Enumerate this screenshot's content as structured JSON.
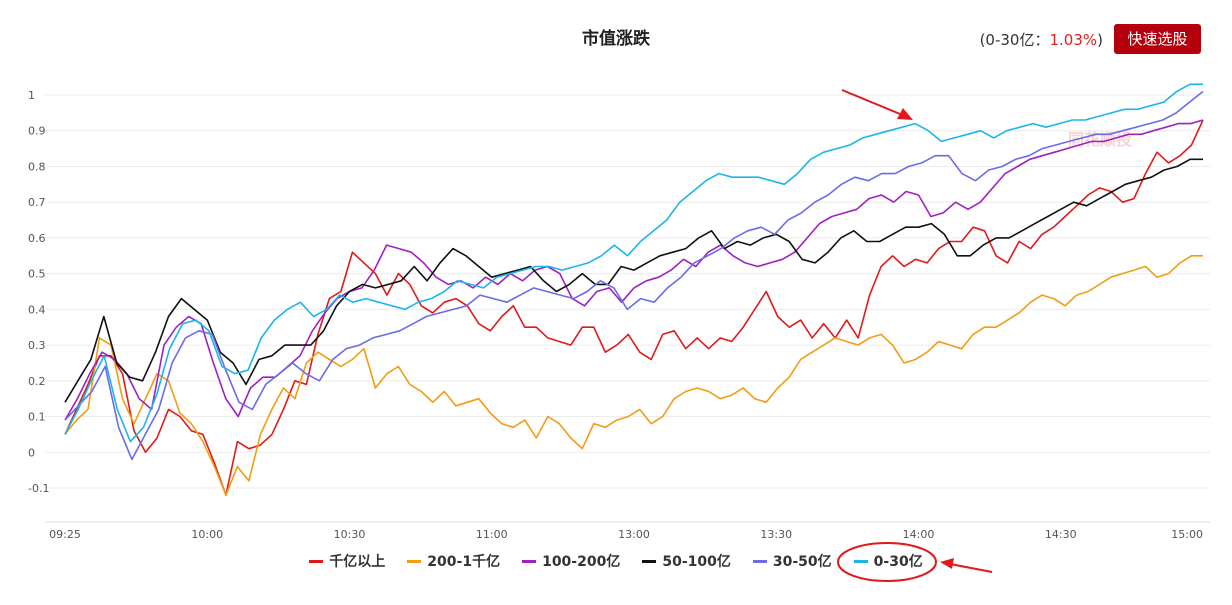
{
  "header": {
    "title": "市值涨跌",
    "stat_prefix": "(0-30亿：",
    "stat_value": "1.03%",
    "stat_suffix": ")",
    "button_label": "快速选股"
  },
  "watermark": "同花顺投",
  "chart_data": {
    "type": "line",
    "title": "市值涨跌",
    "ylim": [
      -0.1,
      1.0
    ],
    "yticks": [
      "-0.1",
      "0",
      "0.1",
      "0.2",
      "0.3",
      "0.4",
      "0.5",
      "0.6",
      "0.7",
      "0.8",
      "0.9",
      "1"
    ],
    "xticks": [
      "09:25",
      "10:00",
      "10:30",
      "11:00",
      "13:00",
      "13:30",
      "14:00",
      "14:30",
      "15:00"
    ],
    "grid": true,
    "legend_position": "bottom-center",
    "series": [
      {
        "name": "千亿以上",
        "color": "#e01a1a",
        "values": [
          0.05,
          0.12,
          0.19,
          0.27,
          0.27,
          0.22,
          0.06,
          0.0,
          0.04,
          0.12,
          0.1,
          0.06,
          0.05,
          -0.03,
          -0.12,
          0.03,
          0.01,
          0.02,
          0.05,
          0.12,
          0.2,
          0.19,
          0.33,
          0.43,
          0.45,
          0.56,
          0.53,
          0.5,
          0.44,
          0.5,
          0.47,
          0.41,
          0.39,
          0.42,
          0.43,
          0.41,
          0.36,
          0.34,
          0.38,
          0.41,
          0.35,
          0.35,
          0.32,
          0.31,
          0.3,
          0.35,
          0.35,
          0.28,
          0.3,
          0.33,
          0.28,
          0.26,
          0.33,
          0.34,
          0.29,
          0.32,
          0.29,
          0.32,
          0.31,
          0.35,
          0.4,
          0.45,
          0.38,
          0.35,
          0.37,
          0.32,
          0.36,
          0.32,
          0.37,
          0.32,
          0.44,
          0.52,
          0.55,
          0.52,
          0.54,
          0.53,
          0.57,
          0.59,
          0.59,
          0.63,
          0.62,
          0.55,
          0.53,
          0.59,
          0.57,
          0.61,
          0.63,
          0.66,
          0.69,
          0.72,
          0.74,
          0.73,
          0.7,
          0.71,
          0.78,
          0.84,
          0.81,
          0.83,
          0.86,
          0.93
        ]
      },
      {
        "name": "200-1千亿",
        "color": "#f39c12",
        "values": [
          0.05,
          0.09,
          0.12,
          0.32,
          0.3,
          0.15,
          0.08,
          0.15,
          0.22,
          0.2,
          0.11,
          0.08,
          0.03,
          -0.04,
          -0.12,
          -0.04,
          -0.08,
          0.05,
          0.12,
          0.18,
          0.15,
          0.25,
          0.28,
          0.26,
          0.24,
          0.26,
          0.29,
          0.18,
          0.22,
          0.24,
          0.19,
          0.17,
          0.14,
          0.17,
          0.13,
          0.14,
          0.15,
          0.11,
          0.08,
          0.07,
          0.09,
          0.04,
          0.1,
          0.08,
          0.04,
          0.01,
          0.08,
          0.07,
          0.09,
          0.1,
          0.12,
          0.08,
          0.1,
          0.15,
          0.17,
          0.18,
          0.17,
          0.15,
          0.16,
          0.18,
          0.15,
          0.14,
          0.18,
          0.21,
          0.26,
          0.28,
          0.3,
          0.32,
          0.31,
          0.3,
          0.32,
          0.33,
          0.3,
          0.25,
          0.26,
          0.28,
          0.31,
          0.3,
          0.29,
          0.33,
          0.35,
          0.35,
          0.37,
          0.39,
          0.42,
          0.44,
          0.43,
          0.41,
          0.44,
          0.45,
          0.47,
          0.49,
          0.5,
          0.51,
          0.52,
          0.49,
          0.5,
          0.53,
          0.55,
          0.55
        ]
      },
      {
        "name": "100-200亿",
        "color": "#a020c0",
        "values": [
          0.09,
          0.15,
          0.22,
          0.28,
          0.26,
          0.22,
          0.15,
          0.12,
          0.3,
          0.35,
          0.38,
          0.36,
          0.25,
          0.15,
          0.1,
          0.18,
          0.21,
          0.21,
          0.24,
          0.27,
          0.34,
          0.39,
          0.43,
          0.45,
          0.46,
          0.51,
          0.58,
          0.57,
          0.56,
          0.53,
          0.49,
          0.47,
          0.48,
          0.46,
          0.49,
          0.47,
          0.5,
          0.48,
          0.51,
          0.52,
          0.5,
          0.43,
          0.41,
          0.45,
          0.46,
          0.42,
          0.46,
          0.48,
          0.49,
          0.51,
          0.54,
          0.52,
          0.56,
          0.58,
          0.55,
          0.53,
          0.52,
          0.53,
          0.54,
          0.56,
          0.6,
          0.64,
          0.66,
          0.67,
          0.68,
          0.71,
          0.72,
          0.7,
          0.73,
          0.72,
          0.66,
          0.67,
          0.7,
          0.68,
          0.7,
          0.74,
          0.78,
          0.8,
          0.82,
          0.83,
          0.84,
          0.85,
          0.86,
          0.87,
          0.87,
          0.88,
          0.89,
          0.89,
          0.9,
          0.91,
          0.92,
          0.92,
          0.93
        ]
      },
      {
        "name": "50-100亿",
        "color": "#111111",
        "values": [
          0.14,
          0.2,
          0.26,
          0.38,
          0.25,
          0.21,
          0.2,
          0.28,
          0.38,
          0.43,
          0.4,
          0.37,
          0.28,
          0.25,
          0.19,
          0.26,
          0.27,
          0.3,
          0.3,
          0.3,
          0.34,
          0.41,
          0.45,
          0.47,
          0.46,
          0.47,
          0.48,
          0.52,
          0.48,
          0.53,
          0.57,
          0.55,
          0.52,
          0.49,
          0.5,
          0.51,
          0.52,
          0.48,
          0.45,
          0.47,
          0.5,
          0.47,
          0.47,
          0.52,
          0.51,
          0.53,
          0.55,
          0.56,
          0.57,
          0.6,
          0.62,
          0.57,
          0.59,
          0.58,
          0.6,
          0.61,
          0.59,
          0.54,
          0.53,
          0.56,
          0.6,
          0.62,
          0.59,
          0.59,
          0.61,
          0.63,
          0.63,
          0.64,
          0.61,
          0.55,
          0.55,
          0.58,
          0.6,
          0.6,
          0.62,
          0.64,
          0.66,
          0.68,
          0.7,
          0.69,
          0.71,
          0.73,
          0.75,
          0.76,
          0.77,
          0.79,
          0.8,
          0.82,
          0.82
        ]
      },
      {
        "name": "30-50亿",
        "color": "#6b6be8",
        "values": [
          0.09,
          0.13,
          0.17,
          0.24,
          0.07,
          -0.02,
          0.05,
          0.12,
          0.25,
          0.32,
          0.34,
          0.33,
          0.23,
          0.14,
          0.12,
          0.19,
          0.22,
          0.25,
          0.22,
          0.2,
          0.26,
          0.29,
          0.3,
          0.32,
          0.33,
          0.34,
          0.36,
          0.38,
          0.39,
          0.4,
          0.41,
          0.44,
          0.43,
          0.42,
          0.44,
          0.46,
          0.45,
          0.44,
          0.43,
          0.45,
          0.48,
          0.46,
          0.4,
          0.43,
          0.42,
          0.46,
          0.49,
          0.53,
          0.55,
          0.57,
          0.6,
          0.62,
          0.63,
          0.61,
          0.65,
          0.67,
          0.7,
          0.72,
          0.75,
          0.77,
          0.76,
          0.78,
          0.78,
          0.8,
          0.81,
          0.83,
          0.83,
          0.78,
          0.76,
          0.79,
          0.8,
          0.82,
          0.83,
          0.85,
          0.86,
          0.87,
          0.88,
          0.89,
          0.89,
          0.9,
          0.91,
          0.92,
          0.93,
          0.95,
          0.98,
          1.01
        ]
      },
      {
        "name": "0-30亿",
        "color": "#1cb5ea",
        "values": [
          0.05,
          0.12,
          0.2,
          0.27,
          0.12,
          0.03,
          0.07,
          0.16,
          0.29,
          0.36,
          0.37,
          0.34,
          0.24,
          0.22,
          0.23,
          0.32,
          0.37,
          0.4,
          0.42,
          0.38,
          0.4,
          0.44,
          0.42,
          0.43,
          0.42,
          0.41,
          0.4,
          0.42,
          0.43,
          0.45,
          0.48,
          0.47,
          0.46,
          0.49,
          0.5,
          0.51,
          0.52,
          0.52,
          0.51,
          0.52,
          0.53,
          0.55,
          0.58,
          0.55,
          0.59,
          0.62,
          0.65,
          0.7,
          0.73,
          0.76,
          0.78,
          0.77,
          0.77,
          0.77,
          0.76,
          0.75,
          0.78,
          0.82,
          0.84,
          0.85,
          0.86,
          0.88,
          0.89,
          0.9,
          0.91,
          0.92,
          0.9,
          0.87,
          0.88,
          0.89,
          0.9,
          0.88,
          0.9,
          0.91,
          0.92,
          0.91,
          0.92,
          0.93,
          0.93,
          0.94,
          0.95,
          0.96,
          0.96,
          0.97,
          0.98,
          1.01,
          1.03,
          1.03
        ]
      }
    ]
  }
}
